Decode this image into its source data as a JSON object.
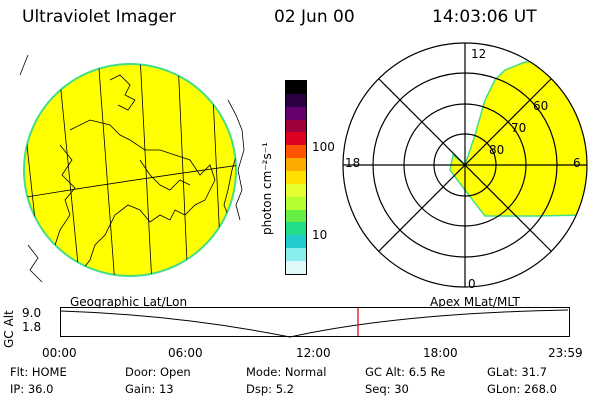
{
  "header": {
    "title": "Ultraviolet Imager",
    "date": "02 Jun 00",
    "time": "14:03:06 UT"
  },
  "colorbar": {
    "label": "photon cm⁻²s⁻¹",
    "ticks": [
      "100",
      "10"
    ],
    "colors": [
      "#000000",
      "#2a0040",
      "#66006e",
      "#a0003a",
      "#dd0020",
      "#ff5500",
      "#ffaa00",
      "#ffe000",
      "#e6ff30",
      "#b4ff30",
      "#66ee44",
      "#22dd88",
      "#22cccc",
      "#88eeee",
      "#e0f8f8"
    ]
  },
  "polar_plot": {
    "mlt_labels": [
      "12",
      "18",
      "6",
      "0"
    ],
    "mlat_labels": [
      "60",
      "70",
      "80"
    ],
    "fill_color": "#ffff00"
  },
  "globe": {
    "fill_color": "#ffff00",
    "limb_color": "#44dd88"
  },
  "altitude_panel": {
    "ylabel": "GC Alt",
    "yticks": [
      "9.0",
      "1.8"
    ],
    "left_label": "Geographic Lat/Lon",
    "right_label": "Apex MLat/MLT",
    "xticks": [
      "00:00",
      "06:00",
      "12:00",
      "18:00",
      "23:59"
    ],
    "marker_color": "#dd0000"
  },
  "footer": {
    "row1": [
      {
        "label": "Flt:",
        "value": "HOME"
      },
      {
        "label": "Door:",
        "value": "Open"
      },
      {
        "label": "Mode:",
        "value": "Normal"
      },
      {
        "label": "GC Alt:",
        "value": "6.5 Re"
      },
      {
        "label": "GLat:",
        "value": "31.7"
      }
    ],
    "row2": [
      {
        "label": "IP:",
        "value": "36.0"
      },
      {
        "label": "Gain:",
        "value": "13"
      },
      {
        "label": "Dsp:",
        "value": "5.2"
      },
      {
        "label": "Seq:",
        "value": "30"
      },
      {
        "label": "GLon:",
        "value": "268.0"
      }
    ]
  }
}
